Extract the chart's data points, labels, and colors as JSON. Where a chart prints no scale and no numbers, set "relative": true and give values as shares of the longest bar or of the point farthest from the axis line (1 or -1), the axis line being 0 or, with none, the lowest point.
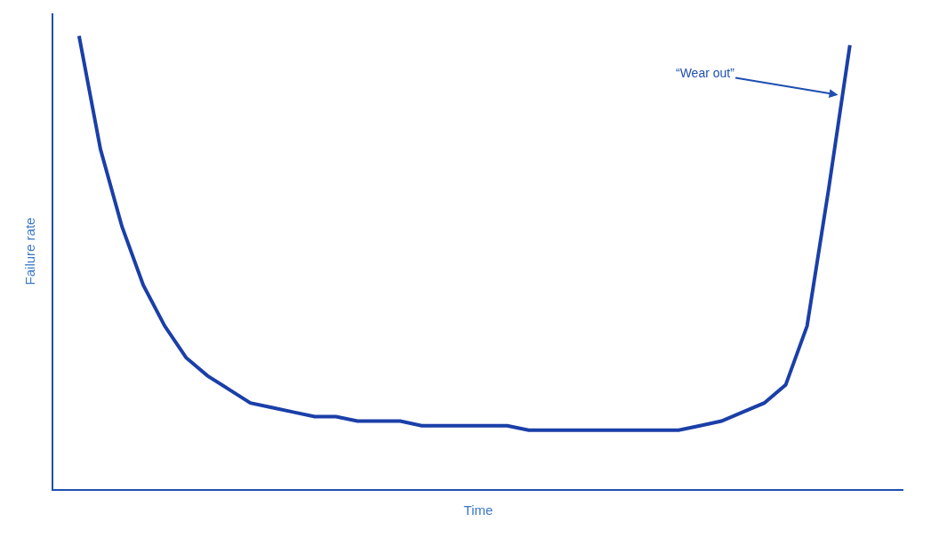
{
  "chart_data": {
    "type": "line",
    "relative": true,
    "xlabel": "Time",
    "ylabel": "Failure rate",
    "categories": [
      null,
      null,
      null,
      null,
      null,
      null,
      null,
      null,
      null,
      null,
      null,
      null,
      null,
      null,
      null,
      null,
      null,
      null,
      null,
      null,
      null,
      null,
      null,
      null,
      null,
      null,
      null,
      null,
      null,
      null,
      null,
      null,
      null,
      null,
      null,
      null,
      null
    ],
    "series": [
      {
        "color": "#1a3fa8",
        "values": [
          1.0,
          0.75,
          0.58,
          0.45,
          0.36,
          0.29,
          0.25,
          0.22,
          0.19,
          0.18,
          0.17,
          0.16,
          0.16,
          0.15,
          0.15,
          0.15,
          0.14,
          0.14,
          0.14,
          0.14,
          0.14,
          0.13,
          0.13,
          0.13,
          0.13,
          0.13,
          0.13,
          0.13,
          0.13,
          0.14,
          0.15,
          0.17,
          0.19,
          0.23,
          0.36,
          0.66,
          0.98
        ]
      }
    ],
    "annotations": [
      "“Wear out”"
    ],
    "marker": "none",
    "line_style": "solid"
  }
}
